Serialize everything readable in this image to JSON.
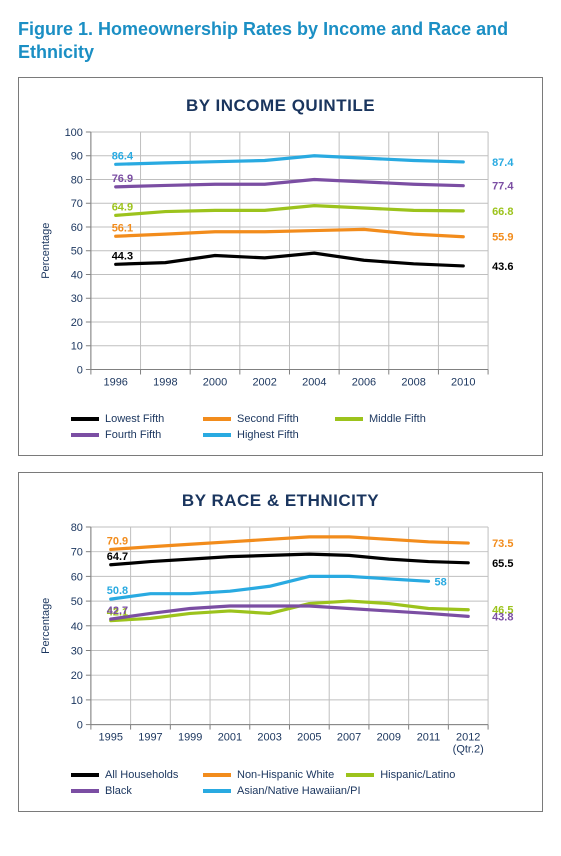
{
  "figure_title": "Figure 1. Homeownership Rates by Income and Race and Ethnicity",
  "title_color": "#1b8fc4",
  "panel_border_color": "#7a7a7a",
  "axis_text_color": "#1a355e",
  "ylabel": "Percentage",
  "chart1": {
    "title": "BY INCOME QUINTILE",
    "type": "line",
    "xcategories": [
      "1996",
      "1998",
      "2000",
      "2002",
      "2004",
      "2006",
      "2008",
      "2010"
    ],
    "ylim": [
      0,
      100
    ],
    "ytick_step": 10,
    "grid_color": "#bfbfbf",
    "tick_color": "#808080",
    "plot_bg": "#ffffff",
    "line_width": 3.2,
    "series": [
      {
        "name": "Lowest Fifth",
        "color": "#000000",
        "values": [
          44.3,
          45,
          48,
          47,
          49,
          46,
          44.5,
          43.6
        ],
        "label_start": 44.3,
        "label_end": 43.6
      },
      {
        "name": "Second Fifth",
        "color": "#f28c1c",
        "values": [
          56.1,
          57,
          58,
          58,
          58.5,
          59,
          57,
          55.9
        ],
        "label_start": 56.1,
        "label_end": 55.9
      },
      {
        "name": "Middle Fifth",
        "color": "#9cc31c",
        "values": [
          64.9,
          66.5,
          67,
          67,
          69,
          68,
          67,
          66.8
        ],
        "label_start": 64.9,
        "label_end": 66.8
      },
      {
        "name": "Fourth Fifth",
        "color": "#7b4ea3",
        "values": [
          76.9,
          77.5,
          78,
          78,
          80,
          79,
          78,
          77.4
        ],
        "label_start": 76.9,
        "label_end": 77.4
      },
      {
        "name": "Highest Fifth",
        "color": "#29aae1",
        "values": [
          86.4,
          87,
          87.5,
          88,
          90,
          89,
          88,
          87.4
        ],
        "label_start": 86.4,
        "label_end": 87.4
      }
    ]
  },
  "chart2": {
    "title": "BY RACE & ETHNICITY",
    "type": "line",
    "xcategories": [
      "1995",
      "1997",
      "1999",
      "2001",
      "2003",
      "2005",
      "2007",
      "2009",
      "2011",
      "2012\n(Qtr.2)"
    ],
    "ylim": [
      0,
      80
    ],
    "ytick_step": 10,
    "grid_color": "#bfbfbf",
    "tick_color": "#808080",
    "plot_bg": "#ffffff",
    "line_width": 3.2,
    "series": [
      {
        "name": "All Households",
        "color": "#000000",
        "values": [
          64.7,
          66,
          67,
          68,
          68.5,
          69,
          68.5,
          67,
          66,
          65.5
        ],
        "label_start": 64.7,
        "label_end": 65.5
      },
      {
        "name": "Non-Hispanic White",
        "color": "#f28c1c",
        "values": [
          70.9,
          72,
          73,
          74,
          75,
          76,
          76,
          75,
          74,
          73.5
        ],
        "label_start": 70.9,
        "label_end": 73.5
      },
      {
        "name": "Hispanic/Latino",
        "color": "#9cc31c",
        "values": [
          42.1,
          43,
          45,
          46,
          45,
          49,
          50,
          49,
          47,
          46.5
        ],
        "label_start": 42.1,
        "label_end": 46.5
      },
      {
        "name": "Black",
        "color": "#7b4ea3",
        "values": [
          42.7,
          45,
          47,
          48,
          48,
          48,
          47,
          46,
          45,
          43.8
        ],
        "label_start": 42.7,
        "label_end": 43.8
      },
      {
        "name": "Asian/Native Hawaiian/PI",
        "color": "#29aae1",
        "values": [
          50.8,
          53,
          53,
          54,
          56,
          60,
          60,
          59,
          58,
          null
        ],
        "label_start": 50.8,
        "label_end": 58,
        "label_end_at": 8
      }
    ]
  }
}
